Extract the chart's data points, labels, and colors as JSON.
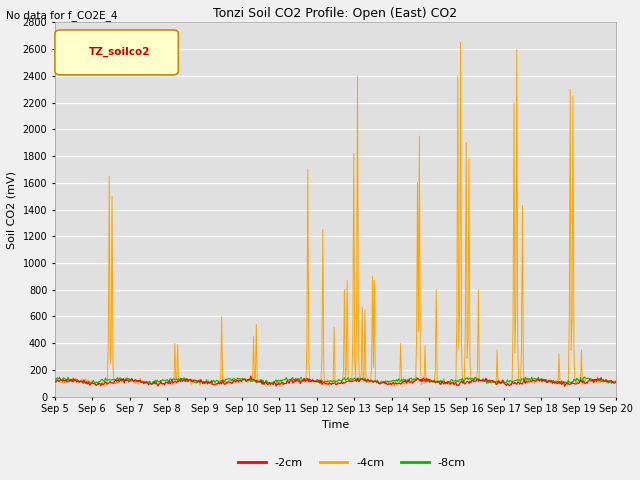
{
  "title": "Tonzi Soil CO2 Profile: Open (East) CO2",
  "subtitle": "No data for f_CO2E_4",
  "ylabel": "Soil CO2 (mV)",
  "xlabel": "Time",
  "legend_label": "TZ_soilco2",
  "series_labels": [
    "-2cm",
    "-4cm",
    "-8cm"
  ],
  "series_colors": [
    "#ff0000",
    "#ffa500",
    "#00bb00"
  ],
  "ylim": [
    0,
    2800
  ],
  "n_points": 600,
  "x_start": 5.0,
  "x_end": 20.0,
  "xtick_labels": [
    "Sep 5",
    "Sep 6",
    "Sep 7",
    "Sep 8",
    "Sep 9",
    "Sep 10",
    "Sep 11",
    "Sep 12",
    "Sep 13",
    "Sep 14",
    "Sep 15",
    "Sep 16",
    "Sep 17",
    "Sep 18",
    "Sep 19",
    "Sep 20"
  ],
  "xtick_positions": [
    5,
    6,
    7,
    8,
    9,
    10,
    11,
    12,
    13,
    14,
    15,
    16,
    17,
    18,
    19,
    20
  ],
  "ytick_positions": [
    0,
    200,
    400,
    600,
    800,
    1000,
    1200,
    1400,
    1600,
    1800,
    2000,
    2200,
    2400,
    2600,
    2800
  ]
}
